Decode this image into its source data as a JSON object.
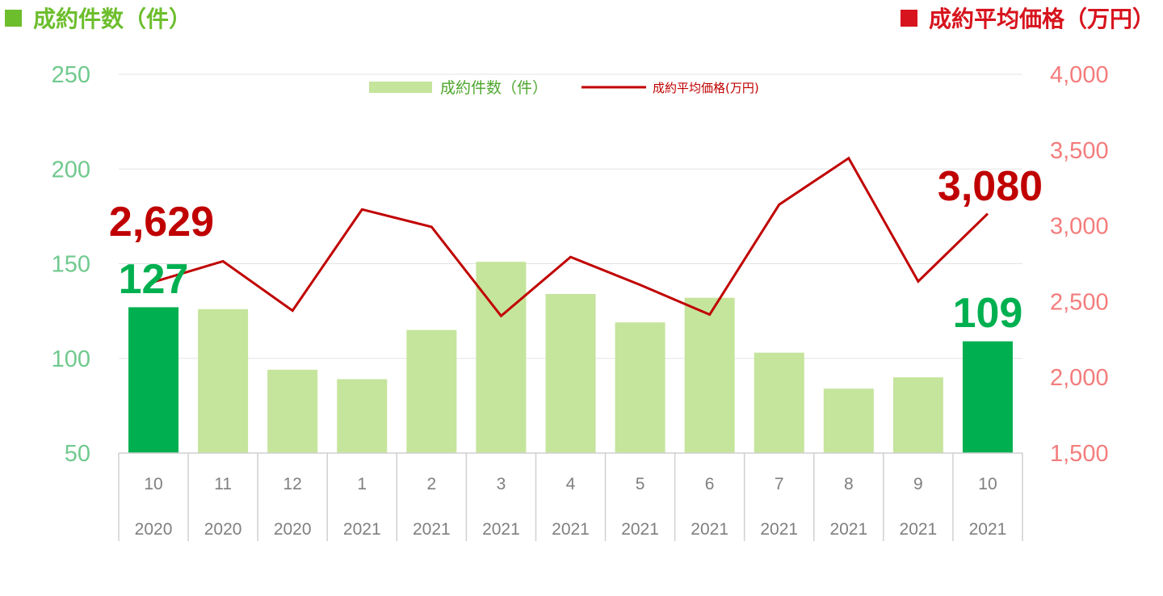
{
  "header": {
    "left_title": "成約件数（件）",
    "right_title": "成約平均価格（万円）"
  },
  "colors": {
    "bar_highlight": "#00B050",
    "bar_normal": "#C5E49C",
    "line": "#C00000",
    "left_axis": "#70C98E",
    "right_axis": "#F47C7C",
    "header_left": "#6DBE2D",
    "header_right": "#D7141E"
  },
  "chart_data": {
    "type": "bar",
    "categories": [
      {
        "month": "10",
        "year": "2020"
      },
      {
        "month": "11",
        "year": "2020"
      },
      {
        "month": "12",
        "year": "2020"
      },
      {
        "month": "1",
        "year": "2021"
      },
      {
        "month": "2",
        "year": "2021"
      },
      {
        "month": "3",
        "year": "2021"
      },
      {
        "month": "4",
        "year": "2021"
      },
      {
        "month": "5",
        "year": "2021"
      },
      {
        "month": "6",
        "year": "2021"
      },
      {
        "month": "7",
        "year": "2021"
      },
      {
        "month": "8",
        "year": "2021"
      },
      {
        "month": "9",
        "year": "2021"
      },
      {
        "month": "10",
        "year": "2021"
      }
    ],
    "series": [
      {
        "name": "成約件数（件）",
        "type": "bar",
        "axis": "left",
        "values": [
          127,
          126,
          94,
          89,
          115,
          151,
          134,
          119,
          132,
          103,
          84,
          90,
          109
        ],
        "highlight_indices": [
          0,
          12
        ]
      },
      {
        "name": "成約平均価格(万円)",
        "type": "line",
        "axis": "right",
        "values": [
          2629,
          2766,
          2440,
          3108,
          2993,
          2405,
          2794,
          2610,
          2414,
          3140,
          3446,
          2633,
          3080
        ]
      }
    ],
    "left_axis": {
      "ylim": [
        50,
        250
      ],
      "ticks": [
        "50",
        "100",
        "150",
        "200",
        "250"
      ]
    },
    "right_axis": {
      "ylim": [
        1500,
        4000
      ],
      "ticks": [
        "1,500",
        "2,000",
        "2,500",
        "3,000",
        "3,500",
        "4,000"
      ]
    },
    "grid": true,
    "legend_position": "top-center",
    "annotations": {
      "bar_first": "127",
      "bar_last": "109",
      "line_first": "2,629",
      "line_last": "3,080"
    }
  }
}
